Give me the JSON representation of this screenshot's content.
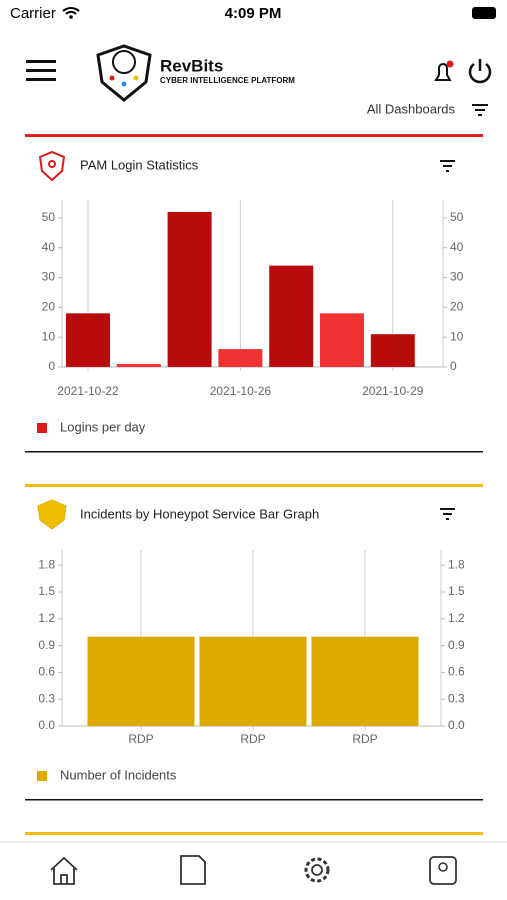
{
  "status_bar": {
    "carrier": "Carrier",
    "time": "4:09 PM"
  },
  "header": {
    "brand": "RevBits",
    "tagline": "CYBER INTELLIGENCE PLATFORM",
    "dashboards": "All Dashboards"
  },
  "chart_data": [
    {
      "type": "bar",
      "title": "PAM Login Statistics",
      "categories": [
        "2021-10-22",
        null,
        null,
        "2021-10-26",
        null,
        null,
        "2021-10-29"
      ],
      "series": [
        {
          "name": "Logins per day",
          "color": "#e01b1b",
          "colors": [
            "#b80c0c",
            "#f03232",
            "#b80c0c",
            "#f03232",
            "#b80c0c",
            "#f03232",
            "#b80c0c"
          ],
          "values": [
            18,
            1,
            52,
            6,
            34,
            18,
            11
          ]
        }
      ],
      "ylim": [
        0,
        56
      ],
      "yticks": [
        0,
        10,
        20,
        30,
        40,
        50
      ],
      "y2lim": [
        0,
        56
      ],
      "y2ticks": [
        0,
        10,
        20,
        30,
        40,
        50
      ]
    },
    {
      "type": "bar",
      "title": "Incidents by Honeypot Service Bar Graph",
      "categories": [
        "RDP",
        "RDP",
        "RDP"
      ],
      "series": [
        {
          "name": "Number of Incidents",
          "color": "#dfaa00",
          "colors": [
            "#dfaa00",
            "#dfaa00",
            "#dfaa00"
          ],
          "values": [
            1,
            1,
            1
          ]
        }
      ],
      "ylim": [
        0,
        1.97
      ],
      "yticks": [
        {
          "value": 0,
          "label": "0.0"
        },
        0.3,
        0.6,
        0.9,
        1.2,
        1.5,
        1.8
      ],
      "y2lim": [
        0,
        1.97
      ],
      "y2ticks": [
        {
          "value": 0,
          "label": "0.0"
        },
        0.3,
        0.6,
        0.9,
        1.2,
        1.5,
        1.8
      ]
    }
  ]
}
